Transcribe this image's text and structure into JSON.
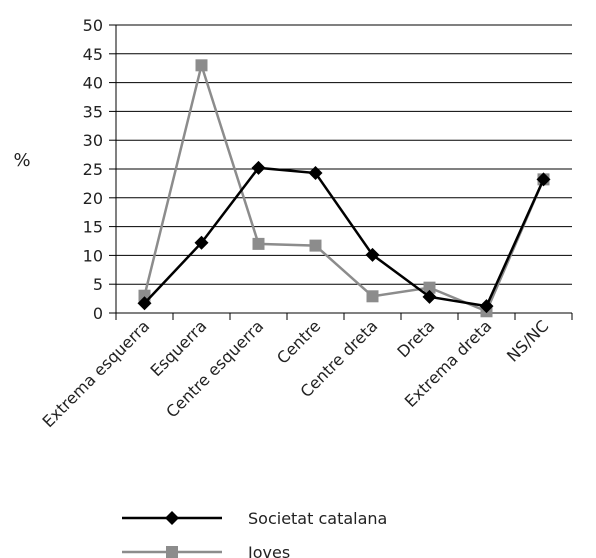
{
  "chart_data": {
    "type": "line",
    "ylabel": "%",
    "ylim": [
      0,
      50
    ],
    "yticks": [
      "0",
      "5",
      "10",
      "15",
      "20",
      "25",
      "30",
      "35",
      "40",
      "45",
      "50"
    ],
    "grid": "horizontal",
    "legend_position": "bottom",
    "categories": [
      "Extrema esquerra",
      "Esquerra",
      "Centre esquerra",
      "Centre",
      "Centre dreta",
      "Dreta",
      "Extrema dreta",
      "NS/NC"
    ],
    "series": [
      {
        "name": "Societat catalana",
        "color": "#000000",
        "marker": "diamond",
        "values": [
          1.7,
          12.2,
          25.2,
          24.3,
          10.1,
          2.8,
          1.2,
          23.2
        ]
      },
      {
        "name": "Joves",
        "color": "#8c8c8c",
        "marker": "square",
        "values": [
          3.0,
          43.0,
          12.0,
          11.7,
          2.9,
          4.4,
          0.3,
          23.2
        ]
      }
    ]
  }
}
